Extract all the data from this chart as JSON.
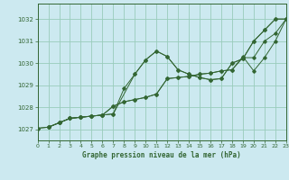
{
  "title": "Graphe pression niveau de la mer (hPa)",
  "bg_color": "#cce9f0",
  "grid_color": "#99ccbb",
  "line_color": "#336633",
  "xlim": [
    0,
    23
  ],
  "ylim": [
    1026.5,
    1032.7
  ],
  "yticks": [
    1027,
    1028,
    1029,
    1030,
    1031,
    1032
  ],
  "xticks": [
    0,
    1,
    2,
    3,
    4,
    5,
    6,
    7,
    8,
    9,
    10,
    11,
    12,
    13,
    14,
    15,
    16,
    17,
    18,
    19,
    20,
    21,
    22,
    23
  ],
  "series": [
    {
      "x": [
        1,
        2,
        3,
        4,
        5,
        6,
        7,
        8,
        9,
        10,
        11,
        12,
        13,
        14,
        15,
        16,
        17,
        18,
        19,
        20,
        21,
        22,
        23
      ],
      "y": [
        1027.1,
        1027.3,
        1027.5,
        1027.55,
        1027.6,
        1027.65,
        1027.7,
        1028.85,
        1029.5,
        1030.15,
        1030.55,
        1030.3,
        1029.7,
        1029.5,
        1029.35,
        1029.25,
        1029.3,
        1030.0,
        1030.2,
        1031.0,
        1031.5,
        1032.0,
        1032.0
      ]
    },
    {
      "x": [
        1,
        2,
        3,
        4,
        5,
        6,
        7,
        9,
        10,
        11,
        12,
        13,
        14,
        15,
        16,
        17,
        18,
        19,
        20,
        21,
        22,
        23
      ],
      "y": [
        1027.1,
        1027.3,
        1027.5,
        1027.55,
        1027.6,
        1027.65,
        1027.7,
        1029.5,
        1030.15,
        1030.55,
        1030.3,
        1029.7,
        1029.5,
        1029.35,
        1029.25,
        1029.3,
        1030.0,
        1030.2,
        1031.0,
        1031.5,
        1032.0,
        1032.0
      ]
    },
    {
      "x": [
        0,
        1,
        2,
        3,
        4,
        5,
        6,
        7,
        8,
        9,
        10,
        11,
        12,
        13,
        14,
        15,
        16,
        17,
        18,
        19,
        20,
        21,
        22,
        23
      ],
      "y": [
        1027.05,
        1027.1,
        1027.3,
        1027.5,
        1027.55,
        1027.6,
        1027.65,
        1028.05,
        1028.25,
        1028.35,
        1028.45,
        1028.6,
        1029.3,
        1029.35,
        1029.4,
        1029.5,
        1029.55,
        1029.65,
        1029.7,
        1030.25,
        1030.25,
        1031.0,
        1031.35,
        1032.0
      ]
    },
    {
      "x": [
        0,
        1,
        2,
        3,
        4,
        5,
        6,
        7,
        8,
        9,
        10,
        11,
        12,
        13,
        14,
        15,
        16,
        17,
        18,
        19,
        20,
        21,
        22,
        23
      ],
      "y": [
        1027.05,
        1027.1,
        1027.3,
        1027.5,
        1027.55,
        1027.6,
        1027.65,
        1028.05,
        1028.25,
        1028.35,
        1028.45,
        1028.6,
        1029.3,
        1029.35,
        1029.4,
        1029.5,
        1029.55,
        1029.65,
        1029.7,
        1030.3,
        1029.65,
        1030.25,
        1031.0,
        1032.0
      ]
    }
  ]
}
